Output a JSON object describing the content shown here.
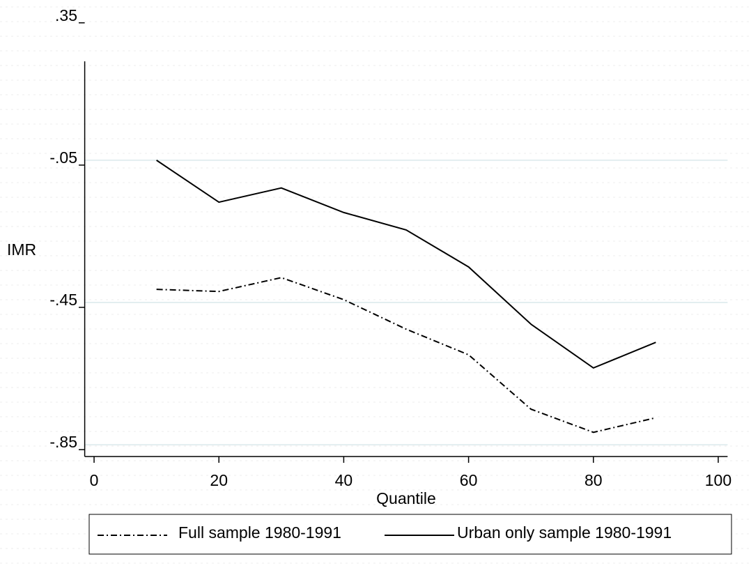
{
  "chart_data": {
    "type": "line",
    "x_label": "Quantile",
    "y_label": "IMR",
    "x": [
      10,
      20,
      30,
      40,
      50,
      60,
      70,
      80,
      90
    ],
    "series": [
      {
        "name": "Full sample 1980-1991",
        "color": "#000000",
        "dash": "dash-dot",
        "values": [
          -0.413,
          -0.419,
          -0.38,
          -0.442,
          -0.525,
          -0.597,
          -0.75,
          -0.815,
          -0.774
        ]
      },
      {
        "name": "Urban only sample 1980-1991",
        "color": "#000000",
        "dash": "solid",
        "values": [
          -0.05,
          -0.168,
          -0.128,
          -0.197,
          -0.246,
          -0.35,
          -0.511,
          -0.634,
          -0.562
        ]
      }
    ],
    "xlim": [
      -1.5,
      101.5
    ],
    "xticks": [
      0,
      20,
      40,
      60,
      80,
      100
    ],
    "ylim": [
      -0.883,
      0.228
    ],
    "yticks": [
      {
        "value": -0.85,
        "label": "-.85"
      },
      {
        "value": -0.45,
        "label": "-.45"
      },
      {
        "value": -0.05,
        "label": "-.05"
      },
      {
        "value": 0.35,
        "label": ".35"
      }
    ],
    "grid": true,
    "grid_color": "#e3eef0",
    "legend": "bottom"
  }
}
